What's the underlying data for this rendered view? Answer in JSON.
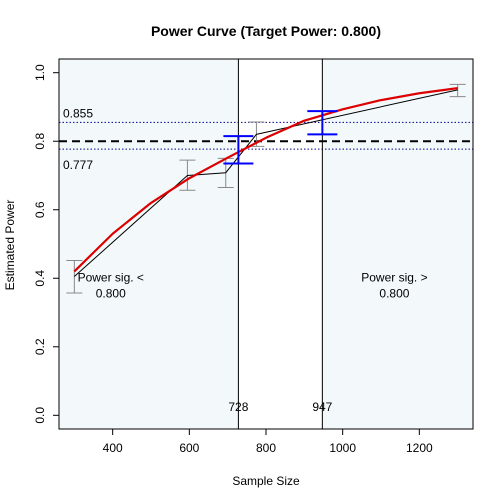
{
  "chart_data": {
    "type": "line",
    "title": "Power Curve (Target Power: 0.800)",
    "xlabel": "Sample Size",
    "ylabel": "Estimated Power",
    "xlim": [
      260,
      1340
    ],
    "ylim": [
      -0.04,
      1.04
    ],
    "x_ticks": [
      400,
      600,
      800,
      1000,
      1200
    ],
    "y_ticks": [
      0.0,
      0.2,
      0.4,
      0.6,
      0.8,
      1.0
    ],
    "x_tick_labels": [
      "400",
      "600",
      "800",
      "1000",
      "1200"
    ],
    "y_tick_labels": [
      "0.0",
      "0.2",
      "0.4",
      "0.6",
      "0.8",
      "1.0"
    ],
    "target_power": 0.8,
    "ci_band": {
      "upper": 0.855,
      "lower": 0.777,
      "upper_label": "0.855",
      "lower_label": "0.777"
    },
    "crossings": [
      {
        "x": 728,
        "label": "728",
        "ci_low": 0.735,
        "ci_high": 0.815
      },
      {
        "x": 947,
        "label": "947",
        "ci_low": 0.82,
        "ci_high": 0.888
      }
    ],
    "regions": [
      {
        "label_line1": "Power sig. <",
        "label_line2": "0.800",
        "x": 395,
        "y": 0.39
      },
      {
        "label_line1": "Power sig. >",
        "label_line2": "0.800",
        "x": 1135,
        "y": 0.39
      }
    ],
    "series": [
      {
        "name": "",
        "role": "observed",
        "color": "#000000",
        "points": [
          {
            "x": 300,
            "y": 0.405,
            "lo": 0.357,
            "hi": 0.452
          },
          {
            "x": 595,
            "y": 0.7,
            "lo": 0.657,
            "hi": 0.745
          },
          {
            "x": 695,
            "y": 0.708,
            "lo": 0.665,
            "hi": 0.75
          },
          {
            "x": 775,
            "y": 0.82,
            "lo": 0.785,
            "hi": 0.856
          },
          {
            "x": 1300,
            "y": 0.95,
            "lo": 0.93,
            "hi": 0.966
          }
        ]
      },
      {
        "name": "",
        "role": "fitted",
        "color": "#dd0000",
        "points": [
          {
            "x": 300,
            "y": 0.42
          },
          {
            "x": 400,
            "y": 0.53
          },
          {
            "x": 500,
            "y": 0.62
          },
          {
            "x": 600,
            "y": 0.692
          },
          {
            "x": 700,
            "y": 0.752
          },
          {
            "x": 800,
            "y": 0.81
          },
          {
            "x": 900,
            "y": 0.86
          },
          {
            "x": 1000,
            "y": 0.893
          },
          {
            "x": 1100,
            "y": 0.92
          },
          {
            "x": 1200,
            "y": 0.94
          },
          {
            "x": 1300,
            "y": 0.955
          }
        ]
      }
    ],
    "colors": {
      "region_fill": "#f3f9fb",
      "ci_line": "#00008b",
      "crossing_bar": "#0000ff",
      "error_bar": "#888888",
      "target_line": "#000000"
    }
  }
}
